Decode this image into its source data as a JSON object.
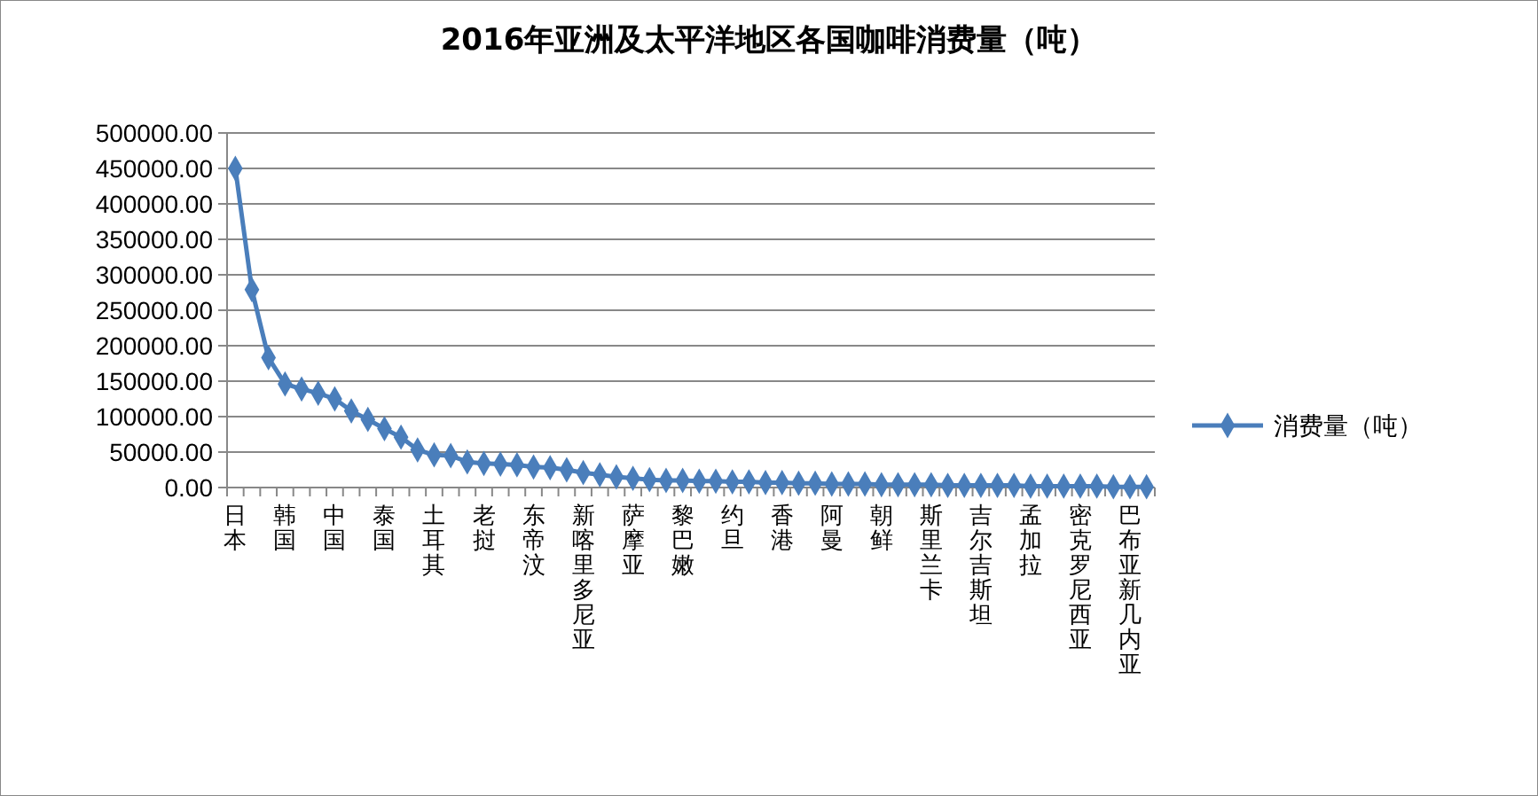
{
  "chart_data": {
    "type": "line",
    "title": "2016年亚洲及太平洋地区各国咖啡消费量（吨）",
    "categories": [
      "日本",
      null,
      null,
      "韩国",
      null,
      null,
      "中国",
      null,
      null,
      "泰国",
      null,
      null,
      "土耳其",
      null,
      null,
      "老挝",
      null,
      null,
      "东帝汶",
      null,
      null,
      "新喀里多尼亚",
      null,
      null,
      "萨摩亚",
      null,
      null,
      "黎巴嫩",
      null,
      null,
      "约旦",
      null,
      null,
      "香港",
      null,
      null,
      "阿曼",
      null,
      null,
      "朝鲜",
      null,
      null,
      "斯里兰卡",
      null,
      null,
      "吉尔吉斯坦",
      null,
      null,
      "孟加拉",
      null,
      null,
      "密克罗尼西亚",
      null,
      null,
      "巴布亚新几内亚",
      null
    ],
    "series": [
      {
        "name": "消费量（吨）",
        "color": "#4a7ebb",
        "values": [
          450000,
          279000,
          183000,
          146000,
          139000,
          133000,
          125000,
          108000,
          96000,
          83000,
          71000,
          53000,
          46000,
          45000,
          36000,
          34000,
          33000,
          32000,
          29000,
          28000,
          25000,
          21000,
          18000,
          15000,
          13000,
          11000,
          10000,
          10000,
          9000,
          9000,
          8000,
          8000,
          7000,
          7000,
          6000,
          6000,
          5000,
          5000,
          5000,
          4000,
          4000,
          4000,
          4000,
          3000,
          3000,
          3000,
          3000,
          3000,
          2000,
          2000,
          2000,
          2000,
          2000,
          1000,
          1000,
          1000
        ]
      }
    ],
    "ylim": [
      0,
      500000
    ],
    "yticks": [
      {
        "value": 0,
        "label": "0.00"
      },
      {
        "value": 50000,
        "label": "50000.00"
      },
      {
        "value": 100000,
        "label": "100000.00"
      },
      {
        "value": 150000,
        "label": "150000.00"
      },
      {
        "value": 200000,
        "label": "200000.00"
      },
      {
        "value": 250000,
        "label": "250000.00"
      },
      {
        "value": 300000,
        "label": "300000.00"
      },
      {
        "value": 350000,
        "label": "350000.00"
      },
      {
        "value": 400000,
        "label": "400000.00"
      },
      {
        "value": 450000,
        "label": "450000.00"
      },
      {
        "value": 500000,
        "label": "500000.00"
      }
    ],
    "grid": "y",
    "legend": "right",
    "marker": "diamond",
    "line_style": "solid"
  }
}
